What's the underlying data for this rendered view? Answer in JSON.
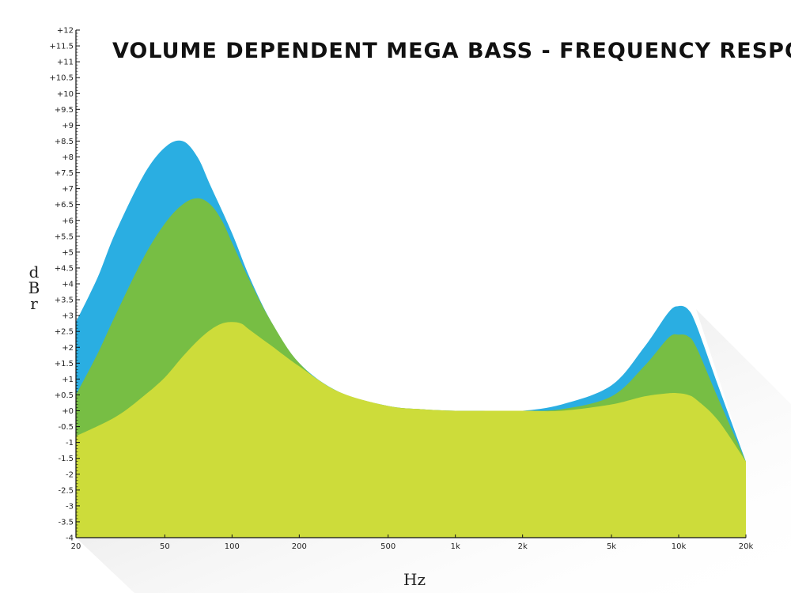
{
  "chart_data": {
    "type": "area",
    "title": "VOLUME DEPENDENT MEGA BASS - FREQUENCY RESPONSE",
    "xlabel": "Hz",
    "ylabel": "dBr",
    "x_scale": "log",
    "xlim": [
      20,
      20000
    ],
    "ylim": [
      -4,
      12
    ],
    "grid": false,
    "legend": "none",
    "x_ticks": [
      {
        "value": 20,
        "label": "20"
      },
      {
        "value": 50,
        "label": "50"
      },
      {
        "value": 100,
        "label": "100"
      },
      {
        "value": 200,
        "label": "200"
      },
      {
        "value": 500,
        "label": "500"
      },
      {
        "value": 1000,
        "label": "1k"
      },
      {
        "value": 2000,
        "label": "2k"
      },
      {
        "value": 5000,
        "label": "5k"
      },
      {
        "value": 10000,
        "label": "10k"
      },
      {
        "value": 20000,
        "label": "20k"
      }
    ],
    "y_ticks": [
      {
        "value": 12,
        "label": "+12"
      },
      {
        "value": 11.5,
        "label": "+11.5"
      },
      {
        "value": 11,
        "label": "+11"
      },
      {
        "value": 10.5,
        "label": "+10.5"
      },
      {
        "value": 10,
        "label": "+10"
      },
      {
        "value": 9.5,
        "label": "+9.5"
      },
      {
        "value": 9,
        "label": "+9"
      },
      {
        "value": 8.5,
        "label": "+8.5"
      },
      {
        "value": 8,
        "label": "+8"
      },
      {
        "value": 7.5,
        "label": "+7.5"
      },
      {
        "value": 7,
        "label": "+7"
      },
      {
        "value": 6.5,
        "label": "+6.5"
      },
      {
        "value": 6,
        "label": "+6"
      },
      {
        "value": 5.5,
        "label": "+5.5"
      },
      {
        "value": 5,
        "label": "+5"
      },
      {
        "value": 4.5,
        "label": "+4.5"
      },
      {
        "value": 4,
        "label": "+4"
      },
      {
        "value": 3.5,
        "label": "+3.5"
      },
      {
        "value": 3,
        "label": "+3"
      },
      {
        "value": 2.5,
        "label": "+2.5"
      },
      {
        "value": 2,
        "label": "+2"
      },
      {
        "value": 1.5,
        "label": "+1.5"
      },
      {
        "value": 1,
        "label": "+1"
      },
      {
        "value": 0.5,
        "label": "+0.5"
      },
      {
        "value": 0,
        "label": "+0"
      },
      {
        "value": -0.5,
        "label": "-0.5"
      },
      {
        "value": -1,
        "label": "-1"
      },
      {
        "value": -1.5,
        "label": "-1.5"
      },
      {
        "value": -2,
        "label": "-2"
      },
      {
        "value": -2.5,
        "label": "-2.5"
      },
      {
        "value": -3,
        "label": "-3"
      },
      {
        "value": -3.5,
        "label": "-3.5"
      },
      {
        "value": -4,
        "label": "-4"
      }
    ],
    "series": [
      {
        "color": "#2aaee2",
        "x": [
          20,
          25,
          30,
          40,
          50,
          60,
          70,
          80,
          100,
          120,
          150,
          200,
          300,
          500,
          700,
          1000,
          1500,
          2000,
          3000,
          5000,
          7000,
          9000,
          10000,
          11000,
          12000,
          15000,
          20000
        ],
        "y": [
          2.8,
          4.2,
          5.6,
          7.4,
          8.3,
          8.5,
          8.0,
          7.1,
          5.6,
          4.2,
          2.8,
          1.5,
          0.6,
          0.15,
          0.05,
          0.0,
          0.0,
          0.0,
          0.2,
          0.8,
          2.0,
          3.1,
          3.3,
          3.2,
          2.7,
          0.8,
          -1.6
        ]
      },
      {
        "color": "#77be44",
        "x": [
          20,
          25,
          30,
          40,
          50,
          60,
          70,
          80,
          90,
          100,
          120,
          150,
          200,
          300,
          500,
          700,
          1000,
          1500,
          2000,
          3000,
          5000,
          7000,
          9000,
          10000,
          11000,
          12000,
          15000,
          20000
        ],
        "y": [
          0.5,
          1.8,
          3.0,
          4.8,
          5.9,
          6.5,
          6.7,
          6.5,
          6.0,
          5.3,
          4.1,
          2.8,
          1.5,
          0.55,
          0.15,
          0.05,
          0.0,
          0.0,
          0.0,
          0.05,
          0.45,
          1.4,
          2.3,
          2.4,
          2.35,
          2.0,
          0.4,
          -1.6
        ]
      },
      {
        "color": "#cddc3a",
        "x": [
          20,
          30,
          40,
          50,
          60,
          70,
          80,
          90,
          100,
          110,
          120,
          150,
          200,
          300,
          500,
          700,
          1000,
          1500,
          2000,
          3000,
          5000,
          7000,
          9000,
          10000,
          11000,
          12000,
          15000,
          20000
        ],
        "y": [
          -0.8,
          -0.2,
          0.45,
          1.05,
          1.7,
          2.2,
          2.55,
          2.75,
          2.8,
          2.75,
          2.55,
          2.05,
          1.4,
          0.6,
          0.15,
          0.05,
          0.0,
          0.0,
          0.0,
          0.0,
          0.2,
          0.45,
          0.55,
          0.55,
          0.5,
          0.35,
          -0.3,
          -1.6
        ]
      }
    ]
  }
}
